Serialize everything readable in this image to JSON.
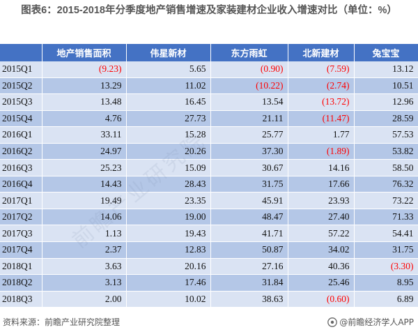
{
  "title": "图表6：2015-2018年分季度地产销售增速及家装建材企业收入增速对比（单位：%）",
  "chart_data": {
    "type": "table",
    "columns": [
      "",
      "地产销售面积",
      "伟星新材",
      "东方雨虹",
      "北新建材",
      "兔宝宝"
    ],
    "rows": [
      {
        "period": "2015Q1",
        "values": [
          "(9.23)",
          "5.65",
          "(0.90)",
          "(7.59)",
          "13.12"
        ]
      },
      {
        "period": "2015Q2",
        "values": [
          "13.29",
          "11.02",
          "(10.22)",
          "(2.74)",
          "10.51"
        ]
      },
      {
        "period": "2015Q3",
        "values": [
          "13.48",
          "16.45",
          "13.54",
          "(13.72)",
          "12.96"
        ]
      },
      {
        "period": "2015Q4",
        "values": [
          "4.76",
          "27.73",
          "21.11",
          "(11.47)",
          "28.59"
        ]
      },
      {
        "period": "2016Q1",
        "values": [
          "33.11",
          "15.28",
          "25.77",
          "1.77",
          "57.53"
        ]
      },
      {
        "period": "2016Q2",
        "values": [
          "24.97",
          "20.26",
          "37.30",
          "(1.89)",
          "53.82"
        ]
      },
      {
        "period": "2016Q3",
        "values": [
          "25.23",
          "15.09",
          "30.67",
          "14.16",
          "58.50"
        ]
      },
      {
        "period": "2016Q4",
        "values": [
          "14.43",
          "28.43",
          "31.75",
          "17.66",
          "76.32"
        ]
      },
      {
        "period": "2017Q1",
        "values": [
          "19.49",
          "23.35",
          "45.91",
          "23.93",
          "73.22"
        ]
      },
      {
        "period": "2017Q2",
        "values": [
          "14.06",
          "19.00",
          "48.47",
          "27.40",
          "71.33"
        ]
      },
      {
        "period": "2017Q3",
        "values": [
          "1.13",
          "19.43",
          "41.71",
          "57.22",
          "54.41"
        ]
      },
      {
        "period": "2017Q4",
        "values": [
          "2.37",
          "12.83",
          "50.87",
          "34.02",
          "31.75"
        ]
      },
      {
        "period": "2018Q1",
        "values": [
          "3.63",
          "20.16",
          "27.16",
          "40.36",
          "(3.30)"
        ]
      },
      {
        "period": "2018Q2",
        "values": [
          "3.13",
          "17.46",
          "31.84",
          "25.46",
          "8.95"
        ]
      },
      {
        "period": "2018Q3",
        "values": [
          "2.00",
          "10.02",
          "38.63",
          "(0.60)",
          "6.89"
        ]
      }
    ]
  },
  "colors": {
    "header_bg": "#4472c4",
    "row_light": "#dae3f3",
    "row_dark": "#b4c7e7",
    "negative": "#ff0000"
  },
  "footer": {
    "source": "资料来源：前瞻产业研究院整理",
    "brand": "@前瞻经济学人APP",
    "brand_icon": "qianzhan-logo-icon"
  },
  "watermark": "前瞻产业研究院"
}
